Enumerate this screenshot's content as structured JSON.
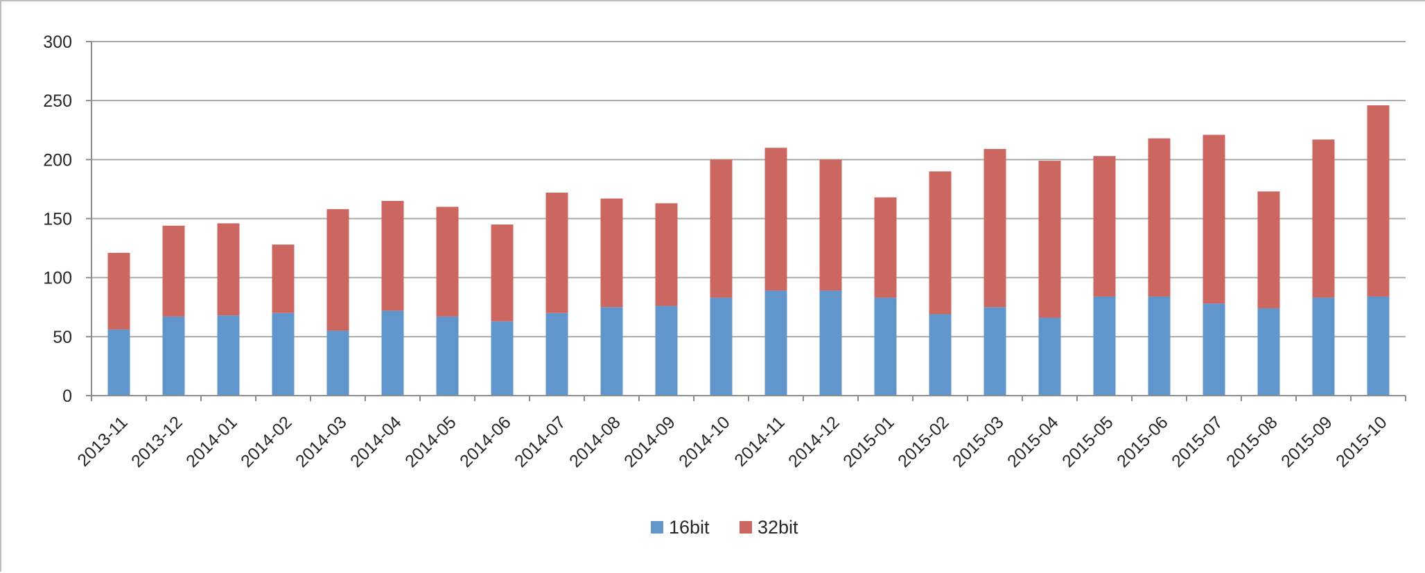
{
  "chart_data": {
    "type": "bar",
    "stacked": true,
    "title": "",
    "xlabel": "",
    "ylabel": "",
    "categories": [
      "2013-11",
      "2013-12",
      "2014-01",
      "2014-02",
      "2014-03",
      "2014-04",
      "2014-05",
      "2014-06",
      "2014-07",
      "2014-08",
      "2014-09",
      "2014-10",
      "2014-11",
      "2014-12",
      "2015-01",
      "2015-02",
      "2015-03",
      "2015-04",
      "2015-05",
      "2015-06",
      "2015-07",
      "2015-08",
      "2015-09",
      "2015-10"
    ],
    "series": [
      {
        "name": "16bit",
        "color": "#6096CC",
        "values": [
          56,
          67,
          68,
          70,
          55,
          72,
          67,
          63,
          70,
          75,
          76,
          83,
          89,
          89,
          83,
          69,
          75,
          66,
          84,
          84,
          78,
          74,
          83,
          84
        ]
      },
      {
        "name": "32bit",
        "color": "#CC6660",
        "values": [
          65,
          77,
          78,
          58,
          103,
          93,
          93,
          82,
          102,
          92,
          87,
          117,
          121,
          111,
          85,
          121,
          134,
          133,
          119,
          134,
          143,
          99,
          134,
          162
        ]
      }
    ],
    "ylim": [
      0,
      300
    ],
    "yticks": [
      "0",
      "50",
      "100",
      "150",
      "200",
      "250",
      "300"
    ],
    "grid": true,
    "legend_position": "bottom-center"
  }
}
